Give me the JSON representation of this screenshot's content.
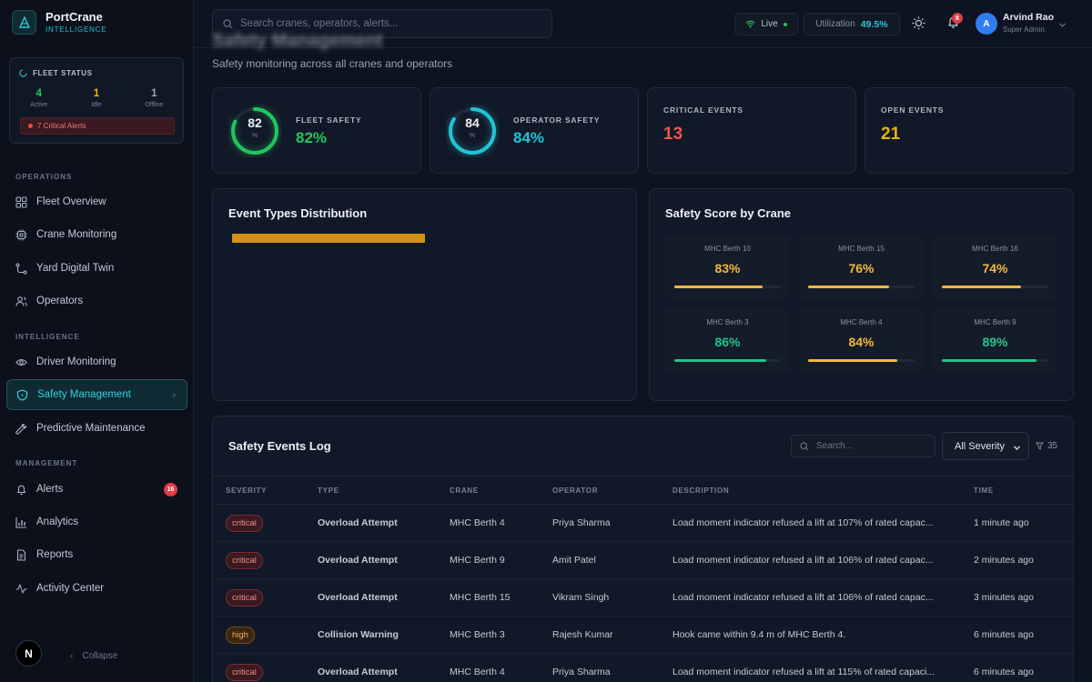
{
  "brand": {
    "name": "PortCrane",
    "sub": "INTELLIGENCE"
  },
  "fleet_status": {
    "title": "FLEET STATUS",
    "stats": [
      {
        "num": "4",
        "label": "Active",
        "color": "#22c55e"
      },
      {
        "num": "1",
        "label": "Idle",
        "color": "#eab308"
      },
      {
        "num": "1",
        "label": "Offline",
        "color": "#9aa3b0"
      }
    ],
    "critical": "7 Critical Alerts"
  },
  "nav": {
    "operations_label": "OPERATIONS",
    "intelligence_label": "INTELLIGENCE",
    "management_label": "MANAGEMENT",
    "fleet_overview": "Fleet Overview",
    "crane_monitoring": "Crane Monitoring",
    "yard_digital_twin": "Yard Digital Twin",
    "operators": "Operators",
    "driver_monitoring": "Driver Monitoring",
    "safety_management": "Safety Management",
    "predictive_maintenance": "Predictive Maintenance",
    "alerts": "Alerts",
    "alerts_badge": "16",
    "analytics": "Analytics",
    "reports": "Reports",
    "activity_center": "Activity Center",
    "collapse": "Collapse",
    "logo_letter": "N"
  },
  "topbar": {
    "search_placeholder": "Search cranes, operators, alerts...",
    "live": "Live",
    "utilization_label": "Utilization",
    "utilization_value": "49.5%",
    "bell_badge": "8",
    "avatar_letter": "A",
    "user_name": "Arvind Rao",
    "user_role": "Super Admin"
  },
  "page": {
    "title": "Safety Management",
    "subtitle": "Safety monitoring across all cranes and operators"
  },
  "stats": {
    "fleet_safety": {
      "label": "FLEET SAFETY",
      "ring": "82",
      "unit": "%",
      "value": "82%",
      "percent": 82,
      "color": "#22c55e"
    },
    "operator_safety": {
      "label": "OPERATOR SAFETY",
      "ring": "84",
      "unit": "%",
      "value": "84%",
      "percent": 84,
      "color": "#22c3d6"
    },
    "critical_events": {
      "label": "CRITICAL EVENTS",
      "value": "13",
      "color": "#ef5350"
    },
    "open_events": {
      "label": "OPEN EVENTS",
      "value": "21",
      "color": "#eab308"
    }
  },
  "event_distribution": {
    "title": "Event Types Distribution",
    "bar_fraction": 0.47,
    "bar_color": "#d4911a"
  },
  "crane_scores": {
    "title": "Safety Score by Crane",
    "tiles": [
      {
        "name": "MHC Berth 10",
        "score": "83%",
        "value": 83,
        "color": "#f5b83d"
      },
      {
        "name": "MHC Berth 15",
        "score": "76%",
        "value": 76,
        "color": "#f5b83d"
      },
      {
        "name": "MHC Berth 16",
        "score": "74%",
        "value": 74,
        "color": "#f5b83d"
      },
      {
        "name": "MHC Berth 3",
        "score": "86%",
        "value": 86,
        "color": "#22c58a"
      },
      {
        "name": "MHC Berth 4",
        "score": "84%",
        "value": 84,
        "color": "#f5b83d"
      },
      {
        "name": "MHC Berth 9",
        "score": "89%",
        "value": 89,
        "color": "#22c58a"
      }
    ]
  },
  "log": {
    "title": "Safety Events Log",
    "search_placeholder": "Search...",
    "severity_filter": "All Severity",
    "count": "35",
    "columns": {
      "severity": "SEVERITY",
      "type": "TYPE",
      "crane": "CRANE",
      "operator": "OPERATOR",
      "description": "DESCRIPTION",
      "time": "TIME"
    },
    "rows": [
      {
        "severity": "critical",
        "type": "Overload Attempt",
        "crane": "MHC Berth 4",
        "operator": "Priya Sharma",
        "description": "Load moment indicator refused a lift at 107% of rated capac...",
        "time": "1 minute ago"
      },
      {
        "severity": "critical",
        "type": "Overload Attempt",
        "crane": "MHC Berth 9",
        "operator": "Amit Patel",
        "description": "Load moment indicator refused a lift at 106% of rated capac...",
        "time": "2 minutes ago"
      },
      {
        "severity": "critical",
        "type": "Overload Attempt",
        "crane": "MHC Berth 15",
        "operator": "Vikram Singh",
        "description": "Load moment indicator refused a lift at 106% of rated capac...",
        "time": "3 minutes ago"
      },
      {
        "severity": "high",
        "type": "Collision Warning",
        "crane": "MHC Berth 3",
        "operator": "Rajesh Kumar",
        "description": "Hook came within 9.4 m of MHC Berth 4.",
        "time": "6 minutes ago"
      },
      {
        "severity": "critical",
        "type": "Overload Attempt",
        "crane": "MHC Berth 4",
        "operator": "Priya Sharma",
        "description": "Load moment indicator refused a lift at 115% of rated capaci...",
        "time": "6 minutes ago"
      }
    ]
  }
}
